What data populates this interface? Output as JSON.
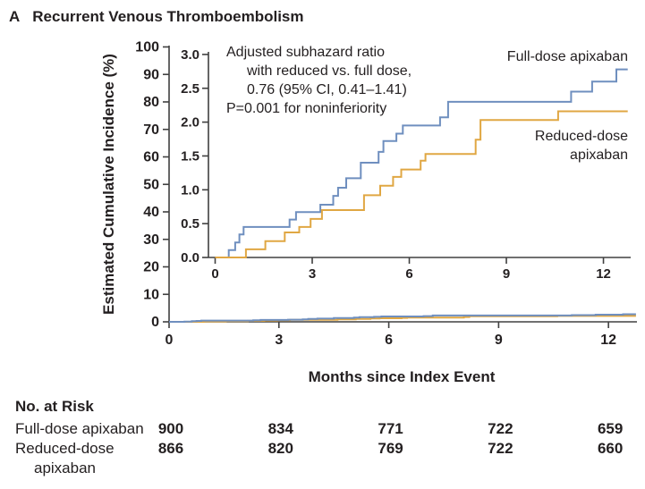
{
  "panel_label": "A",
  "title": "Recurrent Venous Thromboembolism",
  "colors": {
    "text": "#231f20",
    "axis": "#404040",
    "full_dose": "#6f8fbf",
    "reduced_dose": "#e0a743"
  },
  "chart_data": {
    "type": "line",
    "subtype": "step-cumulative-incidence",
    "title": "Recurrent Venous Thromboembolism",
    "xlabel": "Months since Index Event",
    "ylabel": "Estimated Cumulative Incidence (%)",
    "main_axis": {
      "xticks": [
        0,
        3,
        6,
        9,
        12
      ],
      "yticks": [
        0,
        10,
        20,
        30,
        40,
        50,
        60,
        70,
        80,
        90,
        100
      ],
      "xlim": [
        0,
        12.75
      ],
      "ylim": [
        0,
        100
      ],
      "grid": false
    },
    "inset_axis": {
      "xticks": [
        0,
        3,
        6,
        9,
        12
      ],
      "yticks": [
        0.0,
        0.5,
        1.0,
        1.5,
        2.0,
        2.5,
        3.0
      ],
      "ytick_decimals": 1,
      "xlim": [
        0,
        12.75
      ],
      "ylim": [
        0,
        3.0
      ],
      "grid": false
    },
    "annotation_lines": [
      "Adjusted subhazard ratio",
      "with reduced vs. full dose,",
      "0.76 (95% CI, 0.41–1.41)",
      "P=0.001 for noninferiority"
    ],
    "legend_position": "inline-right",
    "series": [
      {
        "name": "Full-dose apixaban",
        "label_lines": [
          "Full-dose apixaban"
        ],
        "color": "#6f8fbf",
        "points": [
          [
            0,
            0
          ],
          [
            0.42,
            0.11
          ],
          [
            0.62,
            0.22
          ],
          [
            0.75,
            0.34
          ],
          [
            0.88,
            0.45
          ],
          [
            2.3,
            0.56
          ],
          [
            2.5,
            0.67
          ],
          [
            3.25,
            0.78
          ],
          [
            3.65,
            0.91
          ],
          [
            3.8,
            1.03
          ],
          [
            4.05,
            1.17
          ],
          [
            4.5,
            1.4
          ],
          [
            5.05,
            1.56
          ],
          [
            5.2,
            1.72
          ],
          [
            5.6,
            1.83
          ],
          [
            5.8,
            1.95
          ],
          [
            6.95,
            2.07
          ],
          [
            7.2,
            2.3
          ],
          [
            11.0,
            2.45
          ],
          [
            11.65,
            2.6
          ],
          [
            12.4,
            2.78
          ],
          [
            12.75,
            2.78
          ]
        ]
      },
      {
        "name": "Reduced-dose apixaban",
        "label_lines": [
          "Reduced-dose",
          "apixaban"
        ],
        "color": "#e0a743",
        "points": [
          [
            0,
            0
          ],
          [
            0.95,
            0.12
          ],
          [
            1.55,
            0.24
          ],
          [
            2.15,
            0.37
          ],
          [
            2.6,
            0.45
          ],
          [
            2.95,
            0.57
          ],
          [
            3.3,
            0.7
          ],
          [
            4.6,
            0.92
          ],
          [
            5.1,
            1.06
          ],
          [
            5.5,
            1.19
          ],
          [
            5.75,
            1.3
          ],
          [
            6.35,
            1.43
          ],
          [
            6.5,
            1.53
          ],
          [
            8.05,
            1.74
          ],
          [
            8.2,
            2.03
          ],
          [
            10.6,
            2.16
          ],
          [
            12.75,
            2.16
          ]
        ]
      }
    ]
  },
  "risk_table": {
    "heading": "No. at Risk",
    "timepoints": [
      0,
      3,
      6,
      9,
      12
    ],
    "rows": [
      {
        "label_lines": [
          "Full-dose apixaban"
        ],
        "values": [
          900,
          834,
          771,
          722,
          659
        ]
      },
      {
        "label_lines": [
          "Reduced-dose",
          "apixaban"
        ],
        "values": [
          866,
          820,
          769,
          722,
          660
        ]
      }
    ]
  }
}
